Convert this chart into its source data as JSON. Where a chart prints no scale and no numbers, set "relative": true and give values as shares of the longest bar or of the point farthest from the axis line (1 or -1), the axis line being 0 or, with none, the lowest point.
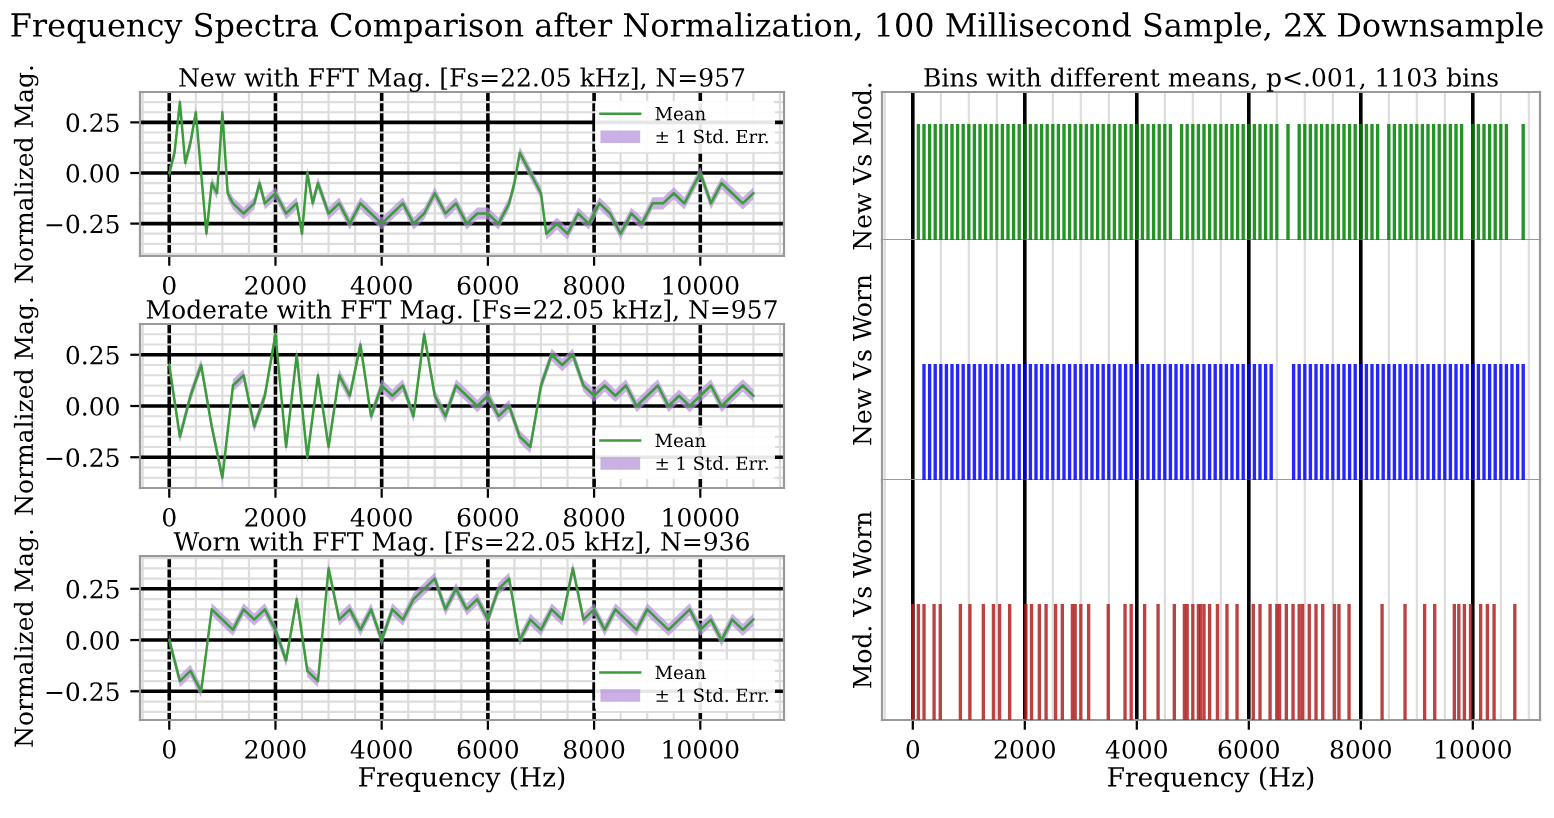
{
  "chart_data": [
    {
      "type": "line",
      "title": "Frequency Spectra Comparison after Normalization, 100 Millisecond Sample, 2X Downsample",
      "subtitle": "New with FFT Mag. [Fs=22.05 kHz], N=957",
      "ylabel": "Normalized Mag.",
      "annotations": [
        "± 1 Std. Err."
      ],
      "xlim": [
        -551,
        11576
      ],
      "ylim": [
        -0.41,
        0.4
      ],
      "xticks": [
        0,
        2000,
        4000,
        6000,
        8000,
        10000
      ],
      "yticks": [
        {
          "value": -0.25,
          "label": "−0.25"
        },
        {
          "value": 0,
          "label": "0.00"
        },
        {
          "value": 0.25,
          "label": "0.25"
        }
      ],
      "grid": true,
      "legend": "top right",
      "x": [
        0,
        100,
        200,
        300,
        400,
        500,
        600,
        700,
        800,
        900,
        1000,
        1100,
        1200,
        1400,
        1600,
        1700,
        1800,
        2000,
        2200,
        2400,
        2500,
        2600,
        2700,
        2800,
        3000,
        3200,
        3400,
        3600,
        3800,
        4000,
        4200,
        4400,
        4600,
        4800,
        5000,
        5200,
        5400,
        5600,
        5800,
        6000,
        6200,
        6400,
        6500,
        6600,
        6800,
        7000,
        7100,
        7300,
        7500,
        7700,
        7900,
        8100,
        8300,
        8500,
        8700,
        8900,
        9100,
        9300,
        9500,
        9700,
        9900,
        10000,
        10200,
        10400,
        10600,
        10800,
        11000
      ],
      "series": [
        {
          "name": "Mean",
          "type": "line",
          "color": "#3c9c3c",
          "values": [
            0.0,
            0.1,
            0.35,
            0.05,
            0.15,
            0.3,
            0.0,
            -0.3,
            -0.05,
            -0.1,
            0.3,
            -0.1,
            -0.15,
            -0.2,
            -0.15,
            -0.05,
            -0.15,
            -0.1,
            -0.2,
            -0.15,
            -0.3,
            0.0,
            -0.15,
            -0.05,
            -0.2,
            -0.15,
            -0.25,
            -0.15,
            -0.2,
            -0.25,
            -0.2,
            -0.15,
            -0.25,
            -0.2,
            -0.1,
            -0.2,
            -0.15,
            -0.25,
            -0.2,
            -0.2,
            -0.25,
            -0.15,
            -0.05,
            0.1,
            0.0,
            -0.1,
            -0.3,
            -0.25,
            -0.3,
            -0.2,
            -0.25,
            -0.15,
            -0.2,
            -0.3,
            -0.2,
            -0.25,
            -0.15,
            -0.15,
            -0.1,
            -0.15,
            -0.05,
            0.0,
            -0.15,
            -0.05,
            -0.1,
            -0.15,
            -0.1
          ],
          "lower": [
            -0.03,
            0.07,
            0.32,
            0.02,
            0.12,
            0.27,
            -0.03,
            -0.33,
            -0.08,
            -0.13,
            0.27,
            -0.13,
            -0.18,
            -0.23,
            -0.18,
            -0.08,
            -0.18,
            -0.13,
            -0.23,
            -0.18,
            -0.33,
            -0.03,
            -0.18,
            -0.08,
            -0.23,
            -0.18,
            -0.28,
            -0.18,
            -0.23,
            -0.28,
            -0.23,
            -0.18,
            -0.28,
            -0.23,
            -0.13,
            -0.23,
            -0.18,
            -0.28,
            -0.23,
            -0.23,
            -0.28,
            -0.18,
            -0.08,
            0.07,
            -0.03,
            -0.13,
            -0.33,
            -0.28,
            -0.33,
            -0.23,
            -0.28,
            -0.18,
            -0.23,
            -0.33,
            -0.23,
            -0.28,
            -0.18,
            -0.18,
            -0.13,
            -0.18,
            -0.08,
            -0.03,
            -0.18,
            -0.08,
            -0.13,
            -0.18,
            -0.13
          ],
          "upper": [
            0.03,
            0.13,
            0.38,
            0.08,
            0.18,
            0.33,
            0.03,
            -0.27,
            -0.02,
            -0.07,
            0.33,
            -0.07,
            -0.12,
            -0.17,
            -0.12,
            -0.02,
            -0.12,
            -0.07,
            -0.17,
            -0.12,
            -0.27,
            0.03,
            -0.12,
            -0.02,
            -0.17,
            -0.12,
            -0.22,
            -0.12,
            -0.17,
            -0.22,
            -0.17,
            -0.12,
            -0.22,
            -0.17,
            -0.07,
            -0.17,
            -0.12,
            -0.22,
            -0.17,
            -0.17,
            -0.22,
            -0.12,
            -0.02,
            0.13,
            0.03,
            -0.07,
            -0.27,
            -0.22,
            -0.27,
            -0.17,
            -0.22,
            -0.12,
            -0.17,
            -0.27,
            -0.17,
            -0.22,
            -0.12,
            -0.12,
            -0.07,
            -0.12,
            -0.02,
            0.03,
            -0.12,
            -0.02,
            -0.07,
            -0.12,
            -0.07
          ]
        }
      ]
    },
    {
      "type": "line",
      "subtitle": "Moderate with FFT Mag. [Fs=22.05 kHz], N=957",
      "ylabel": "Normalized Mag.",
      "annotations": [
        "± 1 Std. Err."
      ],
      "xlim": [
        -551,
        11576
      ],
      "ylim": [
        -0.4,
        0.4
      ],
      "xticks": [
        0,
        2000,
        4000,
        6000,
        8000,
        10000
      ],
      "yticks": [
        {
          "value": -0.25,
          "label": "−0.25"
        },
        {
          "value": 0,
          "label": "0.00"
        },
        {
          "value": 0.25,
          "label": "0.25"
        }
      ],
      "grid": true,
      "legend": "bottom right",
      "x": [
        0,
        200,
        400,
        600,
        800,
        1000,
        1200,
        1400,
        1600,
        1800,
        2000,
        2200,
        2400,
        2600,
        2800,
        3000,
        3200,
        3400,
        3600,
        3800,
        4000,
        4200,
        4400,
        4600,
        4800,
        5000,
        5200,
        5400,
        5600,
        5800,
        6000,
        6200,
        6400,
        6600,
        6800,
        7000,
        7200,
        7400,
        7600,
        7800,
        8000,
        8200,
        8400,
        8600,
        8800,
        9000,
        9200,
        9400,
        9600,
        9800,
        10000,
        10200,
        10400,
        10600,
        10800,
        11000
      ],
      "series": [
        {
          "name": "Mean",
          "type": "line",
          "color": "#3c9c3c",
          "values": [
            0.2,
            -0.15,
            0.05,
            0.2,
            -0.1,
            -0.35,
            0.1,
            0.15,
            -0.1,
            0.05,
            0.35,
            -0.2,
            0.25,
            -0.25,
            0.15,
            -0.2,
            0.15,
            0.05,
            0.3,
            -0.05,
            0.1,
            0.05,
            0.1,
            -0.05,
            0.35,
            0.05,
            -0.05,
            0.1,
            0.05,
            0.0,
            0.05,
            -0.05,
            0.0,
            -0.15,
            -0.2,
            0.1,
            0.25,
            0.2,
            0.25,
            0.1,
            0.05,
            0.1,
            0.05,
            0.1,
            0.0,
            0.05,
            0.1,
            0.0,
            0.05,
            0.0,
            0.05,
            0.1,
            0.0,
            0.05,
            0.1,
            0.05
          ],
          "lower": [
            0.17,
            -0.18,
            0.02,
            0.17,
            -0.13,
            -0.38,
            0.07,
            0.12,
            -0.13,
            0.02,
            0.32,
            -0.23,
            0.22,
            -0.28,
            0.12,
            -0.23,
            0.12,
            0.02,
            0.27,
            -0.08,
            0.07,
            0.02,
            0.07,
            -0.08,
            0.32,
            0.02,
            -0.08,
            0.07,
            0.02,
            -0.03,
            0.02,
            -0.08,
            -0.03,
            -0.18,
            -0.23,
            0.07,
            0.22,
            0.17,
            0.22,
            0.07,
            0.02,
            0.07,
            0.02,
            0.07,
            -0.03,
            0.02,
            0.07,
            -0.03,
            0.02,
            -0.03,
            0.02,
            0.07,
            -0.03,
            0.02,
            0.07,
            0.02
          ],
          "upper": [
            0.23,
            -0.12,
            0.08,
            0.23,
            -0.07,
            -0.32,
            0.13,
            0.18,
            -0.07,
            0.08,
            0.38,
            -0.17,
            0.28,
            -0.22,
            0.18,
            -0.17,
            0.18,
            0.08,
            0.33,
            -0.02,
            0.13,
            0.08,
            0.13,
            -0.02,
            0.38,
            0.08,
            -0.02,
            0.13,
            0.08,
            0.03,
            0.08,
            -0.02,
            0.03,
            -0.12,
            -0.17,
            0.13,
            0.28,
            0.23,
            0.28,
            0.13,
            0.08,
            0.13,
            0.08,
            0.13,
            0.03,
            0.08,
            0.13,
            0.03,
            0.08,
            0.03,
            0.08,
            0.13,
            0.03,
            0.08,
            0.13,
            0.08
          ]
        }
      ]
    },
    {
      "type": "line",
      "subtitle": "Worn with FFT Mag. [Fs=22.05 kHz], N=936",
      "xlabel": "Frequency (Hz)",
      "ylabel": "Normalized Mag.",
      "annotations": [
        "± 1 Std. Err."
      ],
      "xlim": [
        -551,
        11576
      ],
      "ylim": [
        -0.39,
        0.41
      ],
      "xticks": [
        0,
        2000,
        4000,
        6000,
        8000,
        10000
      ],
      "yticks": [
        {
          "value": -0.25,
          "label": "−0.25"
        },
        {
          "value": 0,
          "label": "0.00"
        },
        {
          "value": 0.25,
          "label": "0.25"
        }
      ],
      "grid": true,
      "legend": "bottom right",
      "x": [
        0,
        200,
        400,
        600,
        800,
        1000,
        1200,
        1400,
        1600,
        1800,
        2000,
        2200,
        2400,
        2600,
        2800,
        3000,
        3200,
        3400,
        3600,
        3800,
        4000,
        4200,
        4400,
        4600,
        4800,
        5000,
        5200,
        5400,
        5600,
        5800,
        6000,
        6200,
        6400,
        6600,
        6800,
        7000,
        7200,
        7400,
        7600,
        7800,
        8000,
        8200,
        8400,
        8600,
        8800,
        9000,
        9200,
        9400,
        9600,
        9800,
        10000,
        10200,
        10400,
        10600,
        10800,
        11000
      ],
      "series": [
        {
          "name": "Mean",
          "type": "line",
          "color": "#3c9c3c",
          "values": [
            0.0,
            -0.2,
            -0.15,
            -0.25,
            0.15,
            0.1,
            0.05,
            0.15,
            0.1,
            0.15,
            0.05,
            -0.1,
            0.2,
            -0.15,
            -0.2,
            0.35,
            0.1,
            0.15,
            0.05,
            0.15,
            0.0,
            0.15,
            0.1,
            0.2,
            0.25,
            0.3,
            0.15,
            0.25,
            0.15,
            0.2,
            0.1,
            0.25,
            0.3,
            0.0,
            0.1,
            0.05,
            0.15,
            0.1,
            0.35,
            0.1,
            0.15,
            0.05,
            0.15,
            0.1,
            0.05,
            0.15,
            0.1,
            0.05,
            0.1,
            0.15,
            0.05,
            0.1,
            0.0,
            0.1,
            0.05,
            0.1
          ],
          "lower": [
            -0.03,
            -0.23,
            -0.18,
            -0.28,
            0.12,
            0.07,
            0.02,
            0.12,
            0.07,
            0.12,
            0.02,
            -0.13,
            0.17,
            -0.18,
            -0.23,
            0.32,
            0.07,
            0.12,
            0.02,
            0.12,
            -0.03,
            0.12,
            0.07,
            0.17,
            0.22,
            0.27,
            0.12,
            0.22,
            0.12,
            0.17,
            0.07,
            0.22,
            0.27,
            -0.03,
            0.07,
            0.02,
            0.12,
            0.07,
            0.32,
            0.07,
            0.12,
            0.02,
            0.12,
            0.07,
            0.02,
            0.12,
            0.07,
            0.02,
            0.07,
            0.12,
            0.02,
            0.07,
            -0.03,
            0.07,
            0.02,
            0.07
          ],
          "upper": [
            0.03,
            -0.17,
            -0.12,
            -0.22,
            0.18,
            0.13,
            0.08,
            0.18,
            0.13,
            0.18,
            0.08,
            -0.07,
            0.23,
            -0.12,
            -0.17,
            0.38,
            0.13,
            0.18,
            0.08,
            0.18,
            0.03,
            0.18,
            0.13,
            0.23,
            0.28,
            0.33,
            0.18,
            0.28,
            0.18,
            0.23,
            0.13,
            0.28,
            0.33,
            0.03,
            0.13,
            0.08,
            0.18,
            0.13,
            0.38,
            0.13,
            0.18,
            0.08,
            0.18,
            0.13,
            0.08,
            0.18,
            0.13,
            0.08,
            0.13,
            0.18,
            0.08,
            0.13,
            0.03,
            0.13,
            0.08,
            0.13
          ]
        }
      ]
    },
    {
      "type": "bar",
      "relative": true,
      "subtitle": "Bins with different means, p<.001, 1103 bins",
      "ylabel": "New Vs Mod.",
      "xlim": [
        -550,
        11200
      ],
      "xticks": [
        0,
        2000,
        4000,
        6000,
        8000,
        10000
      ],
      "grid": "x",
      "tick_labels": false,
      "color": "#008000",
      "x": [
        100,
        200,
        300,
        400,
        500,
        600,
        700,
        800,
        900,
        1000,
        1100,
        1200,
        1300,
        1400,
        1500,
        1600,
        1700,
        1800,
        1900,
        2000,
        2100,
        2200,
        2300,
        2400,
        2500,
        2600,
        2700,
        2800,
        2900,
        3000,
        3100,
        3200,
        3300,
        3400,
        3500,
        3600,
        3700,
        3800,
        3900,
        4000,
        4100,
        4200,
        4300,
        4400,
        4500,
        4600,
        4800,
        4900,
        5000,
        5100,
        5200,
        5300,
        5400,
        5500,
        5600,
        5700,
        5800,
        5900,
        6000,
        6100,
        6200,
        6300,
        6400,
        6500,
        6700,
        6900,
        7000,
        7100,
        7200,
        7300,
        7400,
        7500,
        7600,
        7700,
        7800,
        7900,
        8000,
        8100,
        8200,
        8300,
        8500,
        8600,
        8700,
        8800,
        8900,
        9000,
        9100,
        9200,
        9300,
        9400,
        9500,
        9600,
        9700,
        9800,
        10000,
        10100,
        10200,
        10300,
        10400,
        10500,
        10600,
        10900
      ],
      "values": [
        1,
        1,
        1,
        1,
        1,
        1,
        1,
        1,
        1,
        1,
        1,
        1,
        1,
        1,
        1,
        1,
        1,
        1,
        1,
        1,
        1,
        1,
        1,
        1,
        1,
        1,
        1,
        1,
        1,
        1,
        1,
        1,
        1,
        1,
        1,
        1,
        1,
        1,
        1,
        1,
        1,
        1,
        1,
        1,
        1,
        1,
        1,
        1,
        1,
        1,
        1,
        1,
        1,
        1,
        1,
        1,
        1,
        1,
        1,
        1,
        1,
        1,
        1,
        1,
        1,
        1,
        1,
        1,
        1,
        1,
        1,
        1,
        1,
        1,
        1,
        1,
        1,
        1,
        1,
        1,
        1,
        1,
        1,
        1,
        1,
        1,
        1,
        1,
        1,
        1,
        1,
        1,
        1,
        1,
        1,
        1,
        1,
        1,
        1,
        1,
        1,
        1
      ]
    },
    {
      "type": "bar",
      "relative": true,
      "ylabel": "New Vs Worn",
      "xlim": [
        -550,
        11200
      ],
      "xticks": [
        0,
        2000,
        4000,
        6000,
        8000,
        10000
      ],
      "grid": "x",
      "tick_labels": false,
      "color": "#0000ff",
      "x": [
        200,
        300,
        400,
        500,
        600,
        700,
        800,
        900,
        1000,
        1100,
        1200,
        1300,
        1400,
        1500,
        1600,
        1700,
        1800,
        1900,
        2000,
        2100,
        2200,
        2300,
        2400,
        2500,
        2600,
        2700,
        2800,
        2900,
        3000,
        3100,
        3200,
        3300,
        3400,
        3500,
        3600,
        3700,
        3800,
        3900,
        4000,
        4100,
        4200,
        4300,
        4400,
        4500,
        4600,
        4700,
        4800,
        4900,
        5000,
        5100,
        5200,
        5300,
        5400,
        5500,
        5600,
        5700,
        5800,
        5900,
        6000,
        6100,
        6200,
        6300,
        6400,
        6800,
        6900,
        7000,
        7100,
        7200,
        7300,
        7400,
        7500,
        7600,
        7700,
        7800,
        7900,
        8000,
        8100,
        8200,
        8300,
        8400,
        8500,
        8600,
        8700,
        8800,
        8900,
        9000,
        9100,
        9200,
        9300,
        9400,
        9500,
        9600,
        9700,
        9800,
        9900,
        10000,
        10100,
        10200,
        10300,
        10400,
        10500,
        10600,
        10700,
        10800,
        10900
      ],
      "values": [
        1,
        1,
        1,
        1,
        1,
        1,
        1,
        1,
        1,
        1,
        1,
        1,
        1,
        1,
        1,
        1,
        1,
        1,
        1,
        1,
        1,
        1,
        1,
        1,
        1,
        1,
        1,
        1,
        1,
        1,
        1,
        1,
        1,
        1,
        1,
        1,
        1,
        1,
        1,
        1,
        1,
        1,
        1,
        1,
        1,
        1,
        1,
        1,
        1,
        1,
        1,
        1,
        1,
        1,
        1,
        1,
        1,
        1,
        1,
        1,
        1,
        1,
        1,
        1,
        1,
        1,
        1,
        1,
        1,
        1,
        1,
        1,
        1,
        1,
        1,
        1,
        1,
        1,
        1,
        1,
        1,
        1,
        1,
        1,
        1,
        1,
        1,
        1,
        1,
        1,
        1,
        1,
        1,
        1,
        1,
        1,
        1,
        1,
        1,
        1,
        1,
        1,
        1,
        1,
        1
      ]
    },
    {
      "type": "bar",
      "relative": true,
      "xlabel": "Frequency (Hz)",
      "ylabel": "Mod. Vs Worn",
      "xlim": [
        -550,
        11200
      ],
      "xticks": [
        0,
        2000,
        4000,
        6000,
        8000,
        10000
      ],
      "grid": "x",
      "tick_labels": "x",
      "color": "#b22222",
      "x": [
        0,
        100,
        200,
        380,
        490,
        850,
        1020,
        1260,
        1440,
        1550,
        1730,
        2020,
        2120,
        2260,
        2380,
        2550,
        2670,
        2850,
        2900,
        3000,
        3140,
        3490,
        3790,
        3900,
        4140,
        4380,
        4670,
        4850,
        4900,
        5000,
        5100,
        5140,
        5200,
        5300,
        5440,
        5610,
        5790,
        6080,
        6200,
        6380,
        6500,
        6550,
        6670,
        6790,
        6900,
        6960,
        7080,
        7200,
        7320,
        7530,
        7610,
        7790,
        8380,
        8790,
        9140,
        9320,
        9670,
        9750,
        9850,
        9960,
        10140,
        10260,
        10380,
        10750
      ],
      "values": [
        1,
        1,
        1,
        1,
        1,
        1,
        1,
        1,
        1,
        1,
        1,
        1,
        1,
        1,
        1,
        1,
        1,
        1,
        1,
        1,
        1,
        1,
        1,
        1,
        1,
        1,
        1,
        1,
        1,
        1,
        1,
        1,
        1,
        1,
        1,
        1,
        1,
        1,
        1,
        1,
        1,
        1,
        1,
        1,
        1,
        1,
        1,
        1,
        1,
        1,
        1,
        1,
        1,
        1,
        1,
        1,
        1,
        1,
        1,
        1,
        1,
        1,
        1,
        1
      ]
    }
  ]
}
